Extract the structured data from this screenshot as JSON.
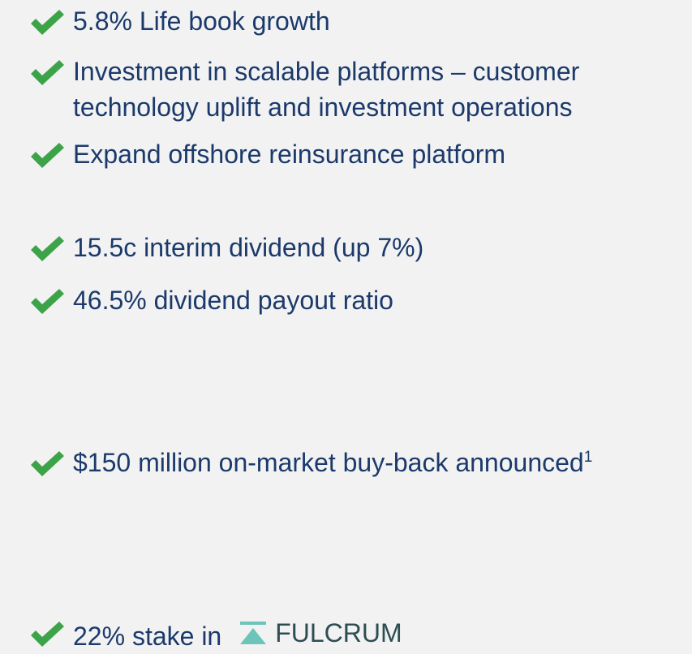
{
  "items": [
    {
      "lines": [
        "5.8% Life book growth"
      ]
    },
    {
      "lines": [
        "Investment in scalable platforms – customer",
        "technology uplift and investment operations"
      ]
    },
    {
      "lines": [
        "Expand offshore reinsurance platform"
      ]
    },
    {
      "lines": [
        "15.5c interim dividend (up 7%)"
      ]
    },
    {
      "lines": [
        "46.5% dividend payout ratio"
      ]
    },
    {
      "lines": [
        "$150 million on-market buy-back announced"
      ],
      "footnote": "1"
    },
    {
      "lines": [
        "22% stake in"
      ],
      "logo": "FULCRUM"
    }
  ]
}
